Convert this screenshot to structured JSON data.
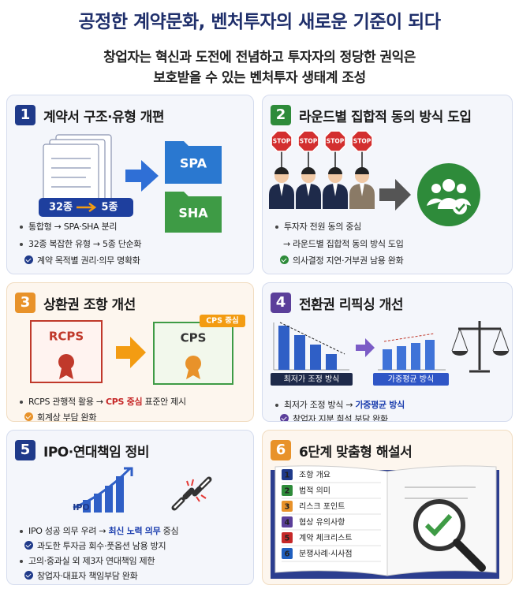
{
  "header": {
    "title": "공정한 계약문화, 벤처투자의 새로운 기준이 되다",
    "subtitle": [
      "창업자는 혁신과 도전에 전념하고 투자자의 정당한 권익은",
      "보호받을 수 있는 벤처투자 생태계 조성"
    ]
  },
  "panels": [
    {
      "number": "1",
      "title": "계약서 구조·유형 개편",
      "labels": [
        "32종",
        "5종",
        "SPA",
        "SHA"
      ],
      "lines": [
        [
          "통합형 → SPA·SHA 분리"
        ],
        [
          "32종 복잡한 유형 → 5종 단순화"
        ],
        [
          "계약 목적별 권리·의무 명확화"
        ]
      ]
    },
    {
      "number": "2",
      "title": "라운드별 집합적 동의 방식 도입",
      "labels": [
        "STOP"
      ],
      "lines": [
        [
          "투자자 전원 동의 중심"
        ],
        [
          "→ 라운드별 집합적 동의 방식 도입"
        ],
        [
          "의사결정 지연·거부권 남용 완화"
        ]
      ]
    },
    {
      "number": "3",
      "title": "상환권 조항 개선",
      "labels": [
        "RCPS",
        "CPS",
        "CPS 중심"
      ],
      "lines": [
        [
          "RCPS 관행적 활용 → ",
          "CPS 중심",
          " 표준안 제시"
        ],
        [
          "회계상 부담 완화"
        ]
      ]
    },
    {
      "number": "4",
      "title": "전환권 리픽싱 개선",
      "labels": [
        "최저가 조정 방식",
        "가중평균 방식"
      ],
      "lines": [
        [
          "최저가 조정 방식 → ",
          "가중평균 방식"
        ],
        [
          "창업자 지분 희석 부담 완화"
        ]
      ]
    },
    {
      "number": "5",
      "title": "IPO·연대책임 정비",
      "labels": [
        "IPO"
      ],
      "lines": [
        [
          "IPO 성공 의무 우려 → ",
          "최신 노력 의무",
          " 중심"
        ],
        [
          "과도한 투자금 회수·풋옵션 남용 방지"
        ],
        [
          "고의·중과실 외 제3자 연대책임 제한"
        ],
        [
          "창업자·대표자 책임부담 완화"
        ]
      ]
    },
    {
      "number": "6",
      "title": "6단계 맞춤형 해설서",
      "steps": [
        {
          "n": "1",
          "text": "조항 개요"
        },
        {
          "n": "2",
          "text": "법적 의미"
        },
        {
          "n": "3",
          "text": "리스크 포인트"
        },
        {
          "n": "4",
          "text": "협상 유의사항"
        },
        {
          "n": "5",
          "text": "계약 체크리스트"
        },
        {
          "n": "6",
          "text": "분쟁사례·시사점"
        }
      ]
    }
  ]
}
